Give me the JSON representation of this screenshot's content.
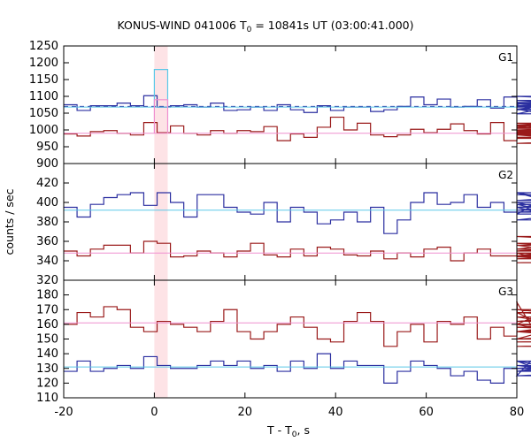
{
  "chart_data": {
    "type": "line",
    "title_main": "KONUS-WIND 041006 T",
    "title_sub": "0",
    "title_rest": " = 10841s UT (03:00:41.000)",
    "xlabel_main": "T - T",
    "xlabel_sub": "0",
    "xlabel_rest": ", s",
    "ylabel": "counts / sec",
    "xlim": [
      -20,
      80
    ],
    "xticks": [
      -20,
      0,
      20,
      40,
      60,
      80
    ],
    "highlight_interval": [
      0,
      2.944
    ],
    "step_width": 2.944,
    "step_x0": -20,
    "colors": {
      "blue_curve": "#2b2fa0",
      "red_curve": "#9a1a1a",
      "cyan_line": "#5bc8e8",
      "pink_line": "#ef8fcf",
      "highlight": "#fde3e6"
    },
    "panels": [
      {
        "name": "G1",
        "ylim": [
          900,
          1250
        ],
        "yticks": [
          900,
          950,
          1000,
          1050,
          1100,
          1150,
          1200,
          1250
        ],
        "series": [
          {
            "name": "G1 (3s)",
            "color": "blue_curve",
            "values": [
              1075,
              1058,
              1072,
              1072,
              1080,
              1072,
              1102,
              1068,
              1072,
              1075,
              1068,
              1080,
              1058,
              1060,
              1068,
              1058,
              1075,
              1060,
              1052,
              1072,
              1058,
              1068,
              1068,
              1055,
              1060,
              1070,
              1098,
              1075,
              1092,
              1068,
              1070,
              1090,
              1065,
              1098,
              1075,
              1062,
              1048,
              1072,
              1082,
              1062,
              1088,
              1068,
              1080,
              1078,
              1060,
              1072,
              1082,
              1060,
              1070,
              1060,
              1070,
              1068,
              1100,
              1068,
              1068
            ]
          },
          {
            "name": "G1 background",
            "color": "blue_curve",
            "dashed": true,
            "values_const": 1070
          },
          {
            "name": "G1 bg cyan",
            "color": "cyan_line",
            "values_const": 1068
          },
          {
            "name": "G1 (3s) red",
            "color": "red_curve",
            "values": [
              988,
              982,
              995,
              998,
              990,
              985,
              1022,
              992,
              1012,
              990,
              985,
              998,
              990,
              998,
              995,
              1010,
              968,
              988,
              978,
              1008,
              1038,
              1000,
              1020,
              985,
              980,
              985,
              1002,
              992,
              1002,
              1018,
              998,
              988,
              1022,
              968,
              995,
              985,
              1012,
              998,
              1005,
              1015,
              992,
              998,
              985,
              960,
              975,
              1008,
              995,
              985,
              1005,
              1000,
              1020,
              978,
              988,
              992,
              990
            ]
          },
          {
            "name": "G1 red bg",
            "color": "pink_line",
            "values_const": 990
          },
          {
            "name": "G1 light blue peak",
            "color": "cyan_line",
            "values": [
              1180
            ],
            "at": 0
          },
          {
            "name": "G1 pink peak",
            "color": "pink_line",
            "values": [
              1090
            ],
            "at": 0
          }
        ]
      },
      {
        "name": "G2",
        "ylim": [
          320,
          440
        ],
        "yticks": [
          320,
          340,
          360,
          380,
          400,
          420
        ],
        "series": [
          {
            "name": "G2 blue",
            "color": "blue_curve",
            "values": [
              395,
              385,
              398,
              405,
              408,
              410,
              397,
              410,
              400,
              385,
              408,
              408,
              395,
              390,
              388,
              400,
              380,
              395,
              390,
              378,
              382,
              390,
              380,
              395,
              368,
              382,
              400,
              410,
              398,
              400,
              408,
              395,
              400,
              390,
              398,
              395,
              388,
              410,
              395,
              400,
              382,
              392,
              402,
              410,
              388,
              390,
              395,
              408,
              400,
              398,
              392,
              398,
              398,
              392,
              408
            ]
          },
          {
            "name": "G2 cyan bg",
            "color": "cyan_line",
            "values_const": 392
          },
          {
            "name": "G2 red",
            "color": "red_curve",
            "values": [
              350,
              345,
              352,
              356,
              356,
              348,
              360,
              358,
              344,
              345,
              350,
              348,
              344,
              350,
              358,
              346,
              344,
              352,
              345,
              354,
              352,
              346,
              345,
              350,
              342,
              348,
              344,
              352,
              354,
              340,
              348,
              352,
              345,
              345,
              348,
              344,
              348,
              345,
              350,
              356,
              345,
              352,
              365,
              358,
              348,
              344,
              352,
              344,
              342,
              356,
              358,
              348,
              345,
              338,
              342
            ]
          },
          {
            "name": "G2 pink bg",
            "color": "pink_line",
            "values_const": 348
          }
        ]
      },
      {
        "name": "G3",
        "ylim": [
          110,
          190
        ],
        "yticks": [
          110,
          120,
          130,
          140,
          150,
          160,
          170,
          180
        ],
        "series": [
          {
            "name": "G3 red",
            "color": "red_curve",
            "values": [
              160,
              168,
              165,
              172,
              170,
              158,
              155,
              162,
              160,
              158,
              155,
              162,
              170,
              155,
              150,
              155,
              160,
              165,
              158,
              150,
              148,
              162,
              168,
              162,
              145,
              155,
              160,
              148,
              162,
              160,
              165,
              150,
              158,
              152,
              175,
              160,
              168,
              155,
              160,
              150,
              165,
              155,
              158,
              155,
              162,
              170,
              160,
              155,
              145,
              148,
              150,
              158,
              168,
              160,
              150
            ]
          },
          {
            "name": "G3 pink bg",
            "color": "pink_line",
            "values_const": 161
          },
          {
            "name": "G3 blue",
            "color": "blue_curve",
            "values": [
              128,
              135,
              128,
              130,
              132,
              130,
              138,
              132,
              130,
              130,
              132,
              135,
              132,
              135,
              130,
              132,
              128,
              135,
              130,
              140,
              130,
              135,
              132,
              132,
              120,
              128,
              135,
              132,
              130,
              125,
              128,
              122,
              120,
              130,
              125,
              135,
              128,
              132,
              128,
              135,
              125,
              128,
              130,
              135,
              132,
              130,
              128,
              135,
              132,
              128,
              132,
              130,
              130,
              130,
              128
            ]
          },
          {
            "name": "G3 cyan bg",
            "color": "cyan_line",
            "values_const": 131
          }
        ]
      }
    ]
  }
}
